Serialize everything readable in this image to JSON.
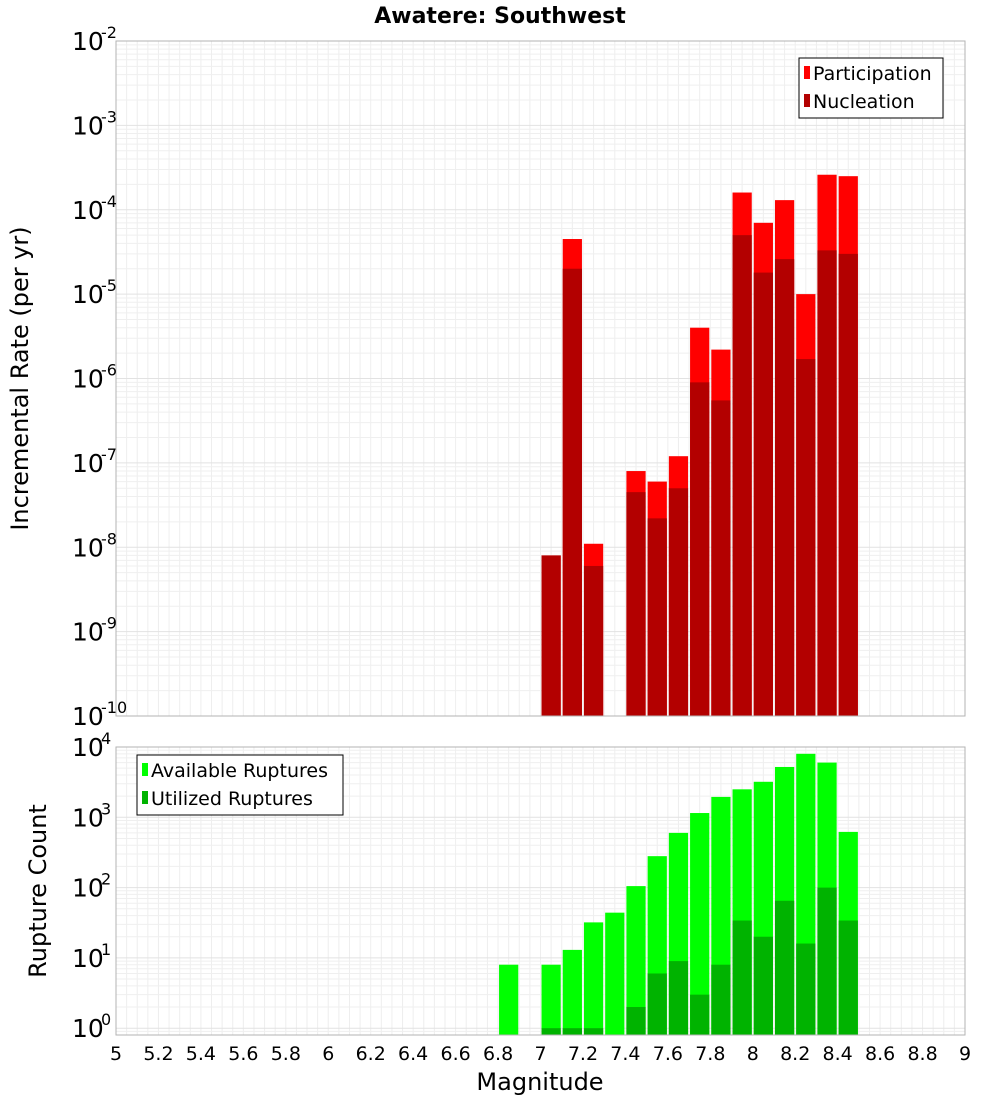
{
  "chart_data": {
    "type": "bar",
    "title": "Awatere: Southwest",
    "xlabel": "Magnitude",
    "x_ticks": [
      "5",
      "5.2",
      "5.4",
      "5.6",
      "5.8",
      "6",
      "6.2",
      "6.4",
      "6.6",
      "6.8",
      "7",
      "7.2",
      "7.4",
      "7.6",
      "7.8",
      "8",
      "8.2",
      "8.4",
      "8.6",
      "8.8",
      "9"
    ],
    "xlim": [
      5,
      9
    ],
    "bar_width": 0.1,
    "grid": true,
    "panels": [
      {
        "ylabel": "Incremental Rate (per yr)",
        "yscale": "log",
        "ylim": [
          1e-10,
          0.01
        ],
        "y_ticks": [
          {
            "base": "10",
            "exp": "-10"
          },
          {
            "base": "10",
            "exp": "-9"
          },
          {
            "base": "10",
            "exp": "-8"
          },
          {
            "base": "10",
            "exp": "-7"
          },
          {
            "base": "10",
            "exp": "-6"
          },
          {
            "base": "10",
            "exp": "-5"
          },
          {
            "base": "10",
            "exp": "-4"
          },
          {
            "base": "10",
            "exp": "-3"
          },
          {
            "base": "10",
            "exp": "-2"
          }
        ],
        "legend_position": "top-right",
        "x": [
          7.05,
          7.15,
          7.25,
          7.45,
          7.55,
          7.65,
          7.75,
          7.85,
          7.95,
          8.05,
          8.15,
          8.25,
          8.35,
          8.45
        ],
        "series": [
          {
            "name": "Participation",
            "color": "#ff0000",
            "values": [
              8e-09,
              4.5e-05,
              1.1e-08,
              8e-08,
              6e-08,
              1.2e-07,
              4e-06,
              2.2e-06,
              0.00016,
              7e-05,
              0.00013,
              1e-05,
              0.00026,
              0.00025
            ]
          },
          {
            "name": "Nucleation",
            "color": "#b30000",
            "values": [
              8e-09,
              2e-05,
              6e-09,
              4.5e-08,
              2.2e-08,
              5e-08,
              9e-07,
              5.5e-07,
              5e-05,
              1.8e-05,
              2.6e-05,
              1.7e-06,
              3.3e-05,
              3e-05
            ]
          }
        ]
      },
      {
        "ylabel": "Rupture Count",
        "yscale": "log",
        "ylim": [
          0.8,
          10000
        ],
        "y_ticks": [
          {
            "base": "10",
            "exp": "0"
          },
          {
            "base": "10",
            "exp": "1"
          },
          {
            "base": "10",
            "exp": "2"
          },
          {
            "base": "10",
            "exp": "3"
          },
          {
            "base": "10",
            "exp": "4"
          }
        ],
        "legend_position": "top-left",
        "x": [
          6.85,
          7.05,
          7.15,
          7.25,
          7.35,
          7.45,
          7.55,
          7.65,
          7.75,
          7.85,
          7.95,
          8.05,
          8.15,
          8.25,
          8.35,
          8.45
        ],
        "series": [
          {
            "name": "Available Ruptures",
            "color": "#00ff00",
            "values": [
              8,
              8,
              13,
              32,
              44,
              105,
              280,
              600,
              1150,
              1950,
              2500,
              3200,
              5200,
              8000,
              6000,
              620
            ]
          },
          {
            "name": "Utilized Ruptures",
            "color": "#00b300",
            "values": [
              0,
              1,
              1,
              1,
              0,
              2,
              6,
              9,
              3,
              8,
              34,
              20,
              65,
              16,
              100,
              34
            ]
          }
        ]
      }
    ]
  }
}
